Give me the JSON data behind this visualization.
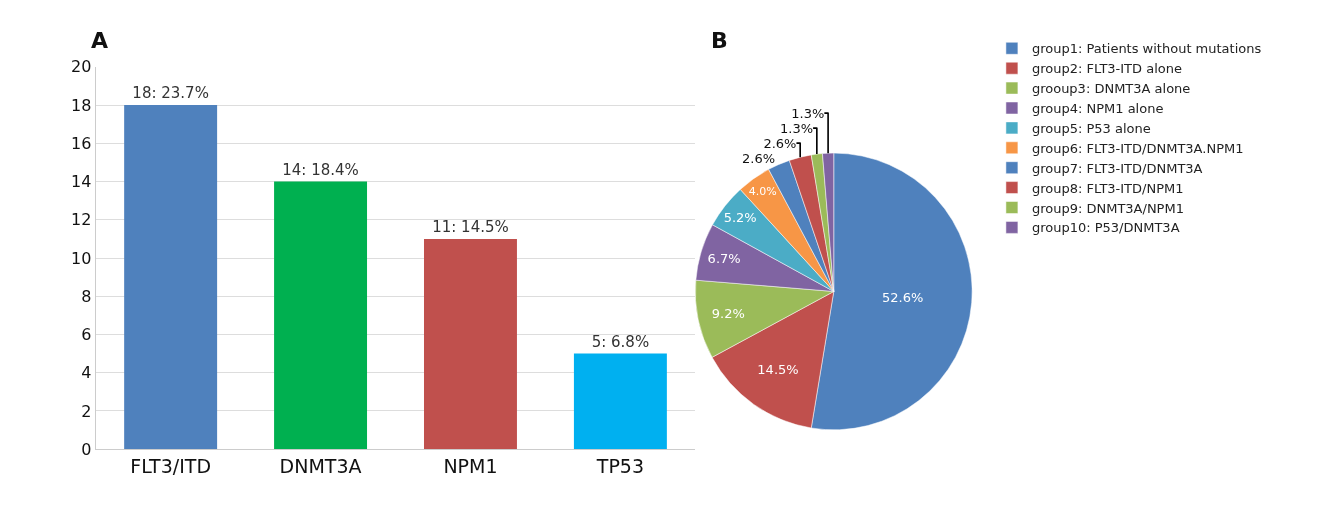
{
  "chart_data": [
    {
      "type": "bar",
      "title": "A",
      "categories": [
        "FLT3/ITD",
        "DNMT3A",
        "NPM1",
        "TP53"
      ],
      "values": [
        18,
        14,
        11,
        5
      ],
      "colors": [
        "#4f81bd",
        "#00b050",
        "#c0504d",
        "#00b0f0"
      ],
      "value_labels": [
        "18: 23.7%",
        "14: 18.4%",
        "11: 14.5%",
        "5: 6.8%"
      ],
      "ylim": [
        0,
        20
      ],
      "yticks": [
        0,
        2,
        4,
        6,
        8,
        10,
        12,
        14,
        16,
        18,
        20
      ],
      "grid": "y"
    },
    {
      "type": "pie",
      "title": "B",
      "categories": [
        "group1: Patients without mutations",
        "group2: FLT3-ITD alone",
        "grooup3: DNMT3A alone",
        "group4: NPM1 alone",
        "group5: P53 alone",
        "group6: FLT3-ITD/DNMT3A.NPM1",
        "group7: FLT3-ITD/DNMT3A",
        "group8: FLT3-ITD/NPM1",
        "group9: DNMT3A/NPM1",
        "group10: P53/DNMT3A"
      ],
      "values": [
        52.6,
        14.5,
        9.2,
        6.7,
        5.2,
        4.0,
        2.6,
        2.6,
        1.3,
        1.3
      ],
      "colors": [
        "#4f81bd",
        "#c0504d",
        "#9bbb59",
        "#8064a2",
        "#4bacc6",
        "#f79646",
        "#4f81bd",
        "#c0504d",
        "#9bbb59",
        "#8064a2"
      ],
      "value_labels": [
        "52.6%",
        "14.5%",
        "9.2%",
        "6.7%",
        "5.2%",
        "4.0%",
        "2.6%",
        "2.6%",
        "1.3%",
        "1.3%"
      ],
      "legend": "right"
    }
  ]
}
